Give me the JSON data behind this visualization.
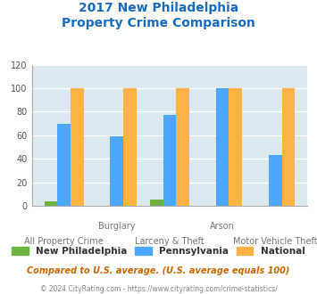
{
  "title_line1": "2017 New Philadelphia",
  "title_line2": "Property Crime Comparison",
  "title_color": "#1a6bbf",
  "categories": [
    "All Property Crime",
    "Burglary",
    "Larceny & Theft",
    "Arson",
    "Motor Vehicle Theft"
  ],
  "upper_labels": [
    "",
    "Burglary",
    "",
    "Arson",
    ""
  ],
  "lower_labels": [
    "All Property Crime",
    "",
    "Larceny & Theft",
    "",
    "Motor Vehicle Theft"
  ],
  "new_philadelphia": [
    4,
    0,
    5,
    0,
    0
  ],
  "pennsylvania": [
    70,
    59,
    77,
    100,
    43
  ],
  "national": [
    100,
    100,
    100,
    100,
    100
  ],
  "new_philly_color": "#6db33f",
  "pennsylvania_color": "#4da6ff",
  "national_color": "#ffb347",
  "background_color": "#dce9f0",
  "ylim": [
    0,
    120
  ],
  "yticks": [
    0,
    20,
    40,
    60,
    80,
    100,
    120
  ],
  "legend_labels": [
    "New Philadelphia",
    "Pennsylvania",
    "National"
  ],
  "footnote1": "Compared to U.S. average. (U.S. average equals 100)",
  "footnote2": "© 2024 CityRating.com - https://www.cityrating.com/crime-statistics/",
  "footnote1_color": "#cc6600",
  "footnote2_color": "#888888"
}
